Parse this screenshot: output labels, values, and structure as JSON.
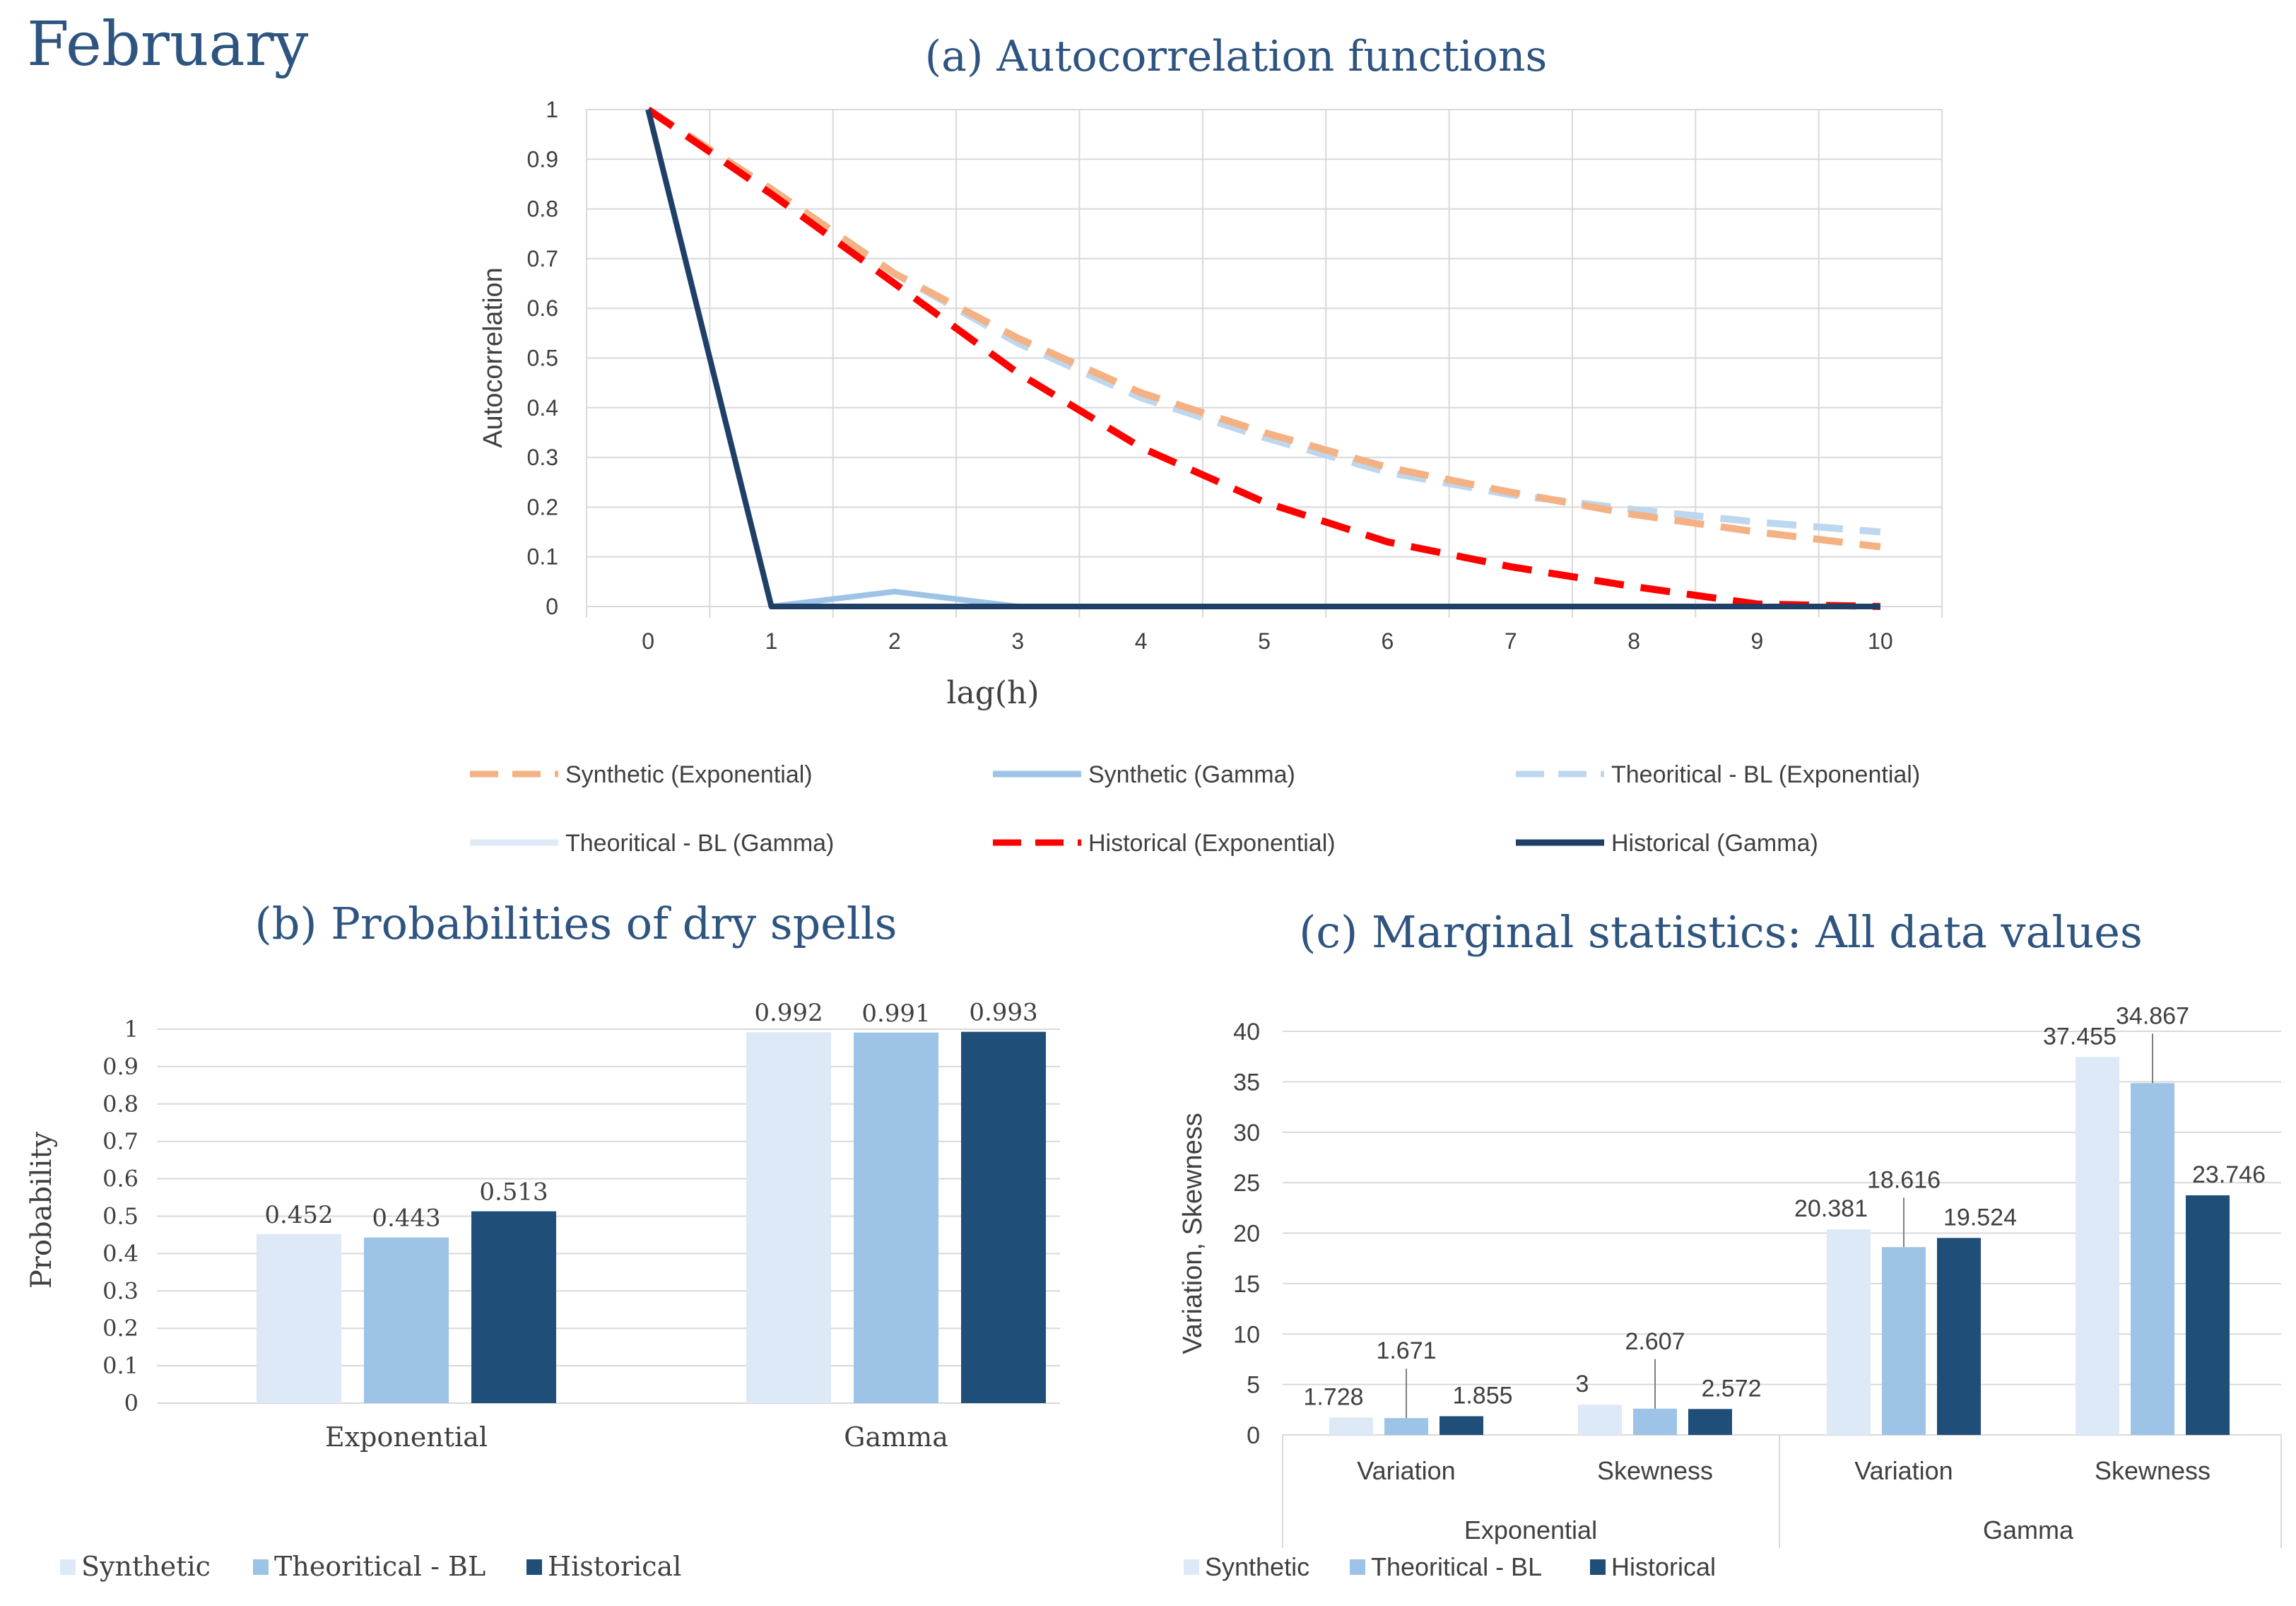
{
  "page": {
    "month_title": "February"
  },
  "colors": {
    "synthetic_bar": "#dde9f6",
    "theoretical_bar": "#9dc3e6",
    "historical_bar": "#1f4e79",
    "synthetic_exp_line": "#f4b183",
    "synthetic_gamma_line": "#9dc3e6",
    "theoretical_exp_line": "#bdd7ee",
    "theoretical_gamma_line": "#deebf7",
    "historical_exp_line": "#ff0000",
    "historical_gamma_line": "#1f3f66",
    "title_color": "#2e5480",
    "grid": "#d9d9d9",
    "axis_text": "#404040"
  },
  "chart_data": [
    {
      "id": "autocorrelation",
      "type": "line",
      "title": "(a) Autocorrelation functions",
      "xlabel": "lag(h)",
      "ylabel": "Autocorrelation",
      "x": [
        0,
        1,
        2,
        3,
        4,
        5,
        6,
        7,
        8,
        9,
        10
      ],
      "ylim": [
        0,
        1
      ],
      "yticks": [
        "0",
        "0.1",
        "0.2",
        "0.3",
        "0.4",
        "0.5",
        "0.6",
        "0.7",
        "0.8",
        "0.9",
        "1"
      ],
      "xticks": [
        "0",
        "1",
        "2",
        "3",
        "4",
        "5",
        "6",
        "7",
        "8",
        "9",
        "10"
      ],
      "grid": true,
      "series": [
        {
          "name": "Synthetic (Exponential)",
          "style": "dashed",
          "color_key": "synthetic_exp_line",
          "values": [
            1,
            0.84,
            0.67,
            0.54,
            0.43,
            0.35,
            0.28,
            0.23,
            0.185,
            0.15,
            0.12
          ]
        },
        {
          "name": "Synthetic (Gamma)",
          "style": "solid",
          "color_key": "synthetic_gamma_line",
          "values": [
            1,
            0.0,
            0.03,
            0.0,
            0.0,
            0.0,
            0.0,
            0.0,
            0.0,
            0.0,
            0.0
          ]
        },
        {
          "name": "Theoritical - BL (Exponential)",
          "style": "dashed",
          "color_key": "theoretical_exp_line",
          "values": [
            1,
            0.84,
            0.67,
            0.53,
            0.42,
            0.34,
            0.27,
            0.225,
            0.195,
            0.17,
            0.15
          ]
        },
        {
          "name": "Theoritical - BL (Gamma)",
          "style": "solid",
          "color_key": "theoretical_gamma_line",
          "values": [
            1,
            0.0,
            0.0,
            0.0,
            0.0,
            0.0,
            0.0,
            0.0,
            0.0,
            0.0,
            0.0
          ]
        },
        {
          "name": "Historical (Exponential)",
          "style": "dashed",
          "color_key": "historical_exp_line",
          "values": [
            1,
            0.83,
            0.65,
            0.47,
            0.32,
            0.21,
            0.13,
            0.08,
            0.04,
            0.005,
            0.0
          ]
        },
        {
          "name": "Historical (Gamma)",
          "style": "solid",
          "color_key": "historical_gamma_line",
          "values": [
            1,
            0.0,
            0.0,
            0.0,
            0.0,
            0.0,
            0.0,
            0.0,
            0.0,
            0.0,
            0.0
          ]
        }
      ],
      "legend": [
        "Synthetic (Exponential)",
        "Synthetic (Gamma)",
        "Theoritical - BL (Exponential)",
        "Theoritical - BL (Gamma)",
        "Historical (Exponential)",
        "Historical (Gamma)"
      ]
    },
    {
      "id": "dry_spells",
      "type": "bar",
      "title": "(b) Probabilities of dry spells",
      "ylabel": "Probability",
      "categories": [
        "Exponential",
        "Gamma"
      ],
      "ylim": [
        0,
        1
      ],
      "yticks": [
        "0",
        "0.1",
        "0.2",
        "0.3",
        "0.4",
        "0.5",
        "0.6",
        "0.7",
        "0.8",
        "0.9",
        "1"
      ],
      "series": [
        {
          "name": "Synthetic",
          "color_key": "synthetic_bar",
          "values": [
            0.452,
            0.992
          ],
          "labels": [
            "0.452",
            "0.992"
          ]
        },
        {
          "name": "Theoritical - BL",
          "color_key": "theoretical_bar",
          "values": [
            0.443,
            0.991
          ],
          "labels": [
            "0.443",
            "0.991"
          ]
        },
        {
          "name": "Historical",
          "color_key": "historical_bar",
          "values": [
            0.513,
            0.993
          ],
          "labels": [
            "0.513",
            "0.993"
          ]
        }
      ],
      "legend_position": "bottom-left"
    },
    {
      "id": "marginal_stats",
      "type": "bar",
      "title": "(c) Marginal statistics: All data values",
      "ylabel": "Variation, Skewness",
      "categories": [
        "Variation",
        "Skewness",
        "Variation",
        "Skewness"
      ],
      "groups": [
        "Exponential",
        "Gamma"
      ],
      "ylim": [
        0,
        40
      ],
      "yticks": [
        "0",
        "5",
        "10",
        "15",
        "20",
        "25",
        "30",
        "35",
        "40"
      ],
      "series": [
        {
          "name": "Synthetic",
          "color_key": "synthetic_bar",
          "values": [
            1.728,
            3,
            20.381,
            37.455
          ],
          "labels": [
            "1.728",
            "3",
            "20.381",
            "37.455"
          ]
        },
        {
          "name": "Theoritical - BL",
          "color_key": "theoretical_bar",
          "values": [
            1.671,
            2.607,
            18.616,
            34.867
          ],
          "labels": [
            "1.671",
            "2.607",
            "18.616",
            "34.867"
          ]
        },
        {
          "name": "Historical",
          "color_key": "historical_bar",
          "values": [
            1.855,
            2.572,
            19.524,
            23.746
          ],
          "labels": [
            "1.855",
            "2.572",
            "19.524",
            "23.746"
          ]
        }
      ],
      "legend_position": "bottom-left"
    }
  ]
}
